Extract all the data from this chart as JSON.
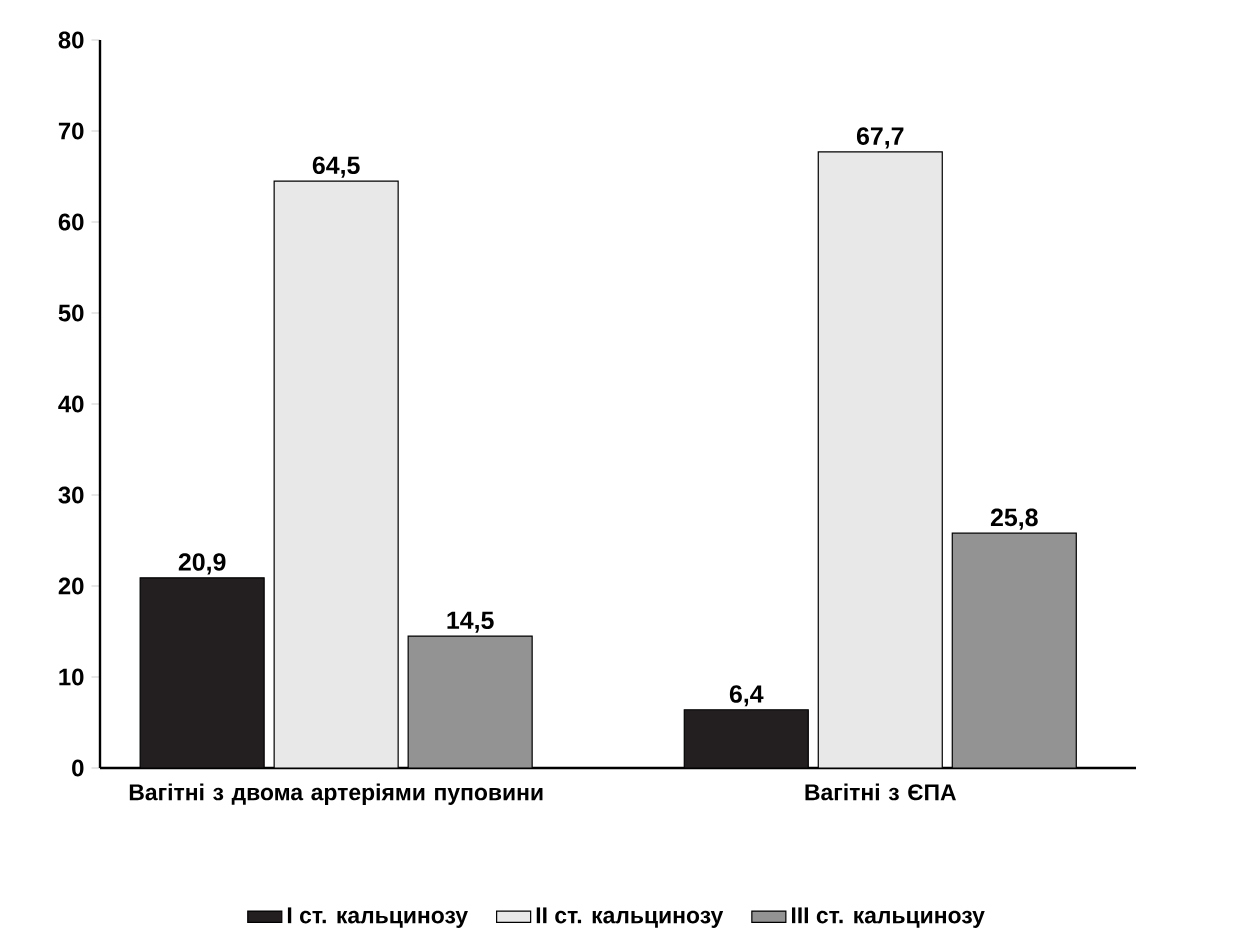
{
  "chart_data": {
    "type": "bar",
    "categories": [
      "Вагітні з двома артеріями пуповини",
      "Вагітні з ЄПА"
    ],
    "series": [
      {
        "name": "I ст. кальцинозу",
        "color": "#231f20",
        "values": [
          20.9,
          6.4
        ],
        "value_labels": [
          "20,9",
          "6,4"
        ]
      },
      {
        "name": "II ст. кальцинозу",
        "color": "#e8e8e8",
        "values": [
          64.5,
          67.7
        ],
        "value_labels": [
          "64,5",
          "67,7"
        ]
      },
      {
        "name": "III ст. кальцинозу",
        "color": "#939393",
        "values": [
          14.5,
          25.8
        ],
        "value_labels": [
          "14,5",
          "25,8"
        ]
      }
    ],
    "ylim": [
      0,
      80
    ],
    "yticks": [
      0,
      10,
      20,
      30,
      40,
      50,
      60,
      70,
      80
    ],
    "legend": "bottom"
  }
}
